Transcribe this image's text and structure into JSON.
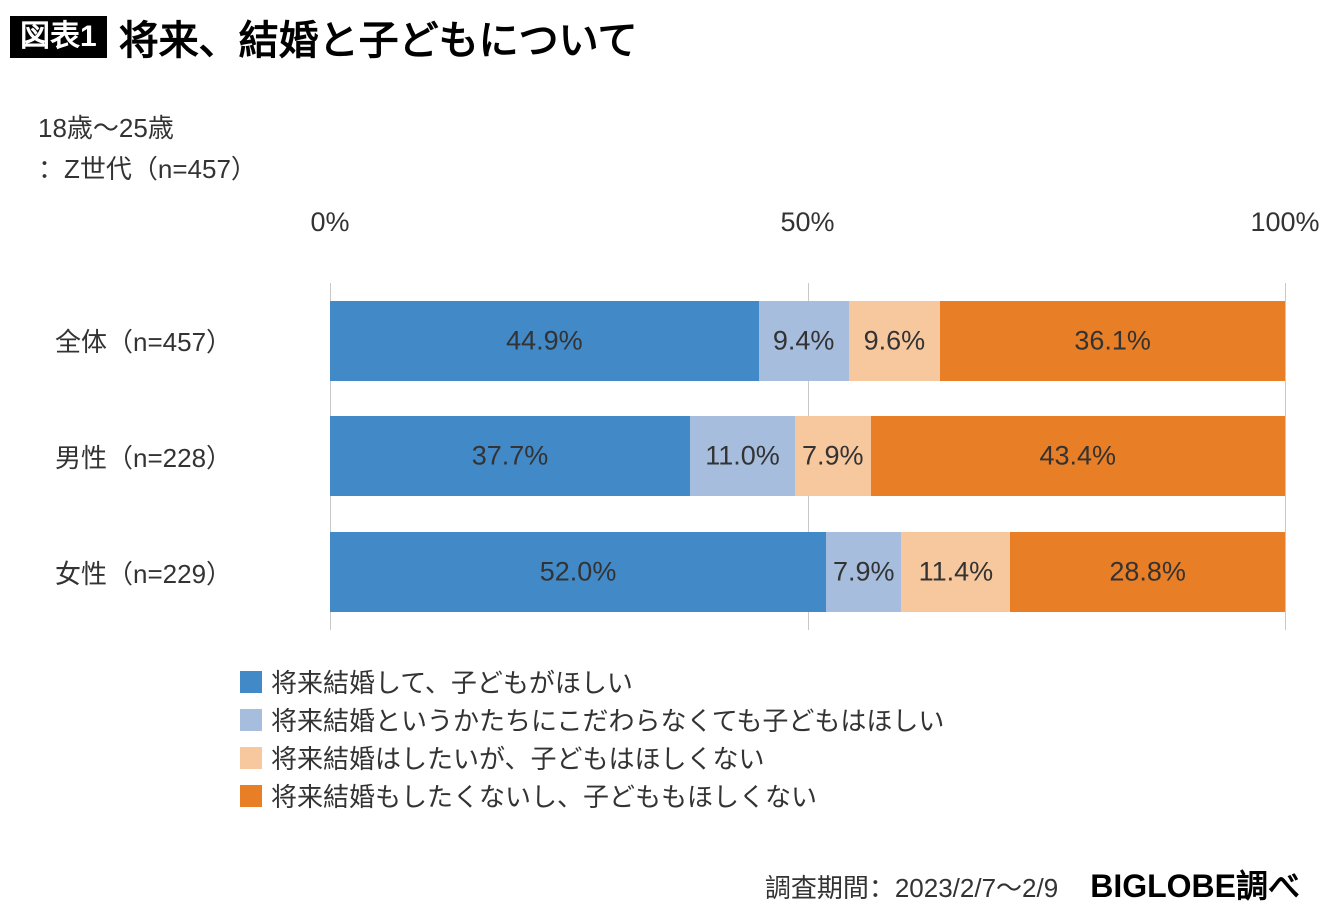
{
  "header": {
    "badge": "図表1",
    "title": "将来、結婚と子どもについて"
  },
  "subtitle": {
    "line1": "18歳〜25歳",
    "line2": "：Z世代（n=457）"
  },
  "chart_data": {
    "type": "bar",
    "orientation": "horizontal",
    "stacked": true,
    "unit": "%",
    "xlim": [
      0,
      100
    ],
    "x_ticks": [
      "0%",
      "50%",
      "100%"
    ],
    "grid": "vertical lines at 0%, 50%, 100%",
    "legend_position": "bottom-left",
    "categories": [
      "全体（n=457）",
      "男性（n=228）",
      "女性（n=229）"
    ],
    "series": [
      {
        "name": "将来結婚して、子どもがほしい",
        "color": "#4289c7",
        "values": [
          44.9,
          37.7,
          52.0
        ],
        "labels": [
          "44.9%",
          "37.7%",
          "52.0%"
        ]
      },
      {
        "name": "将来結婚というかたちにこだわらなくても子どもはほしい",
        "color": "#a6bdde",
        "values": [
          9.4,
          11.0,
          7.9
        ],
        "labels": [
          "9.4%",
          "11.0%",
          "7.9%"
        ]
      },
      {
        "name": "将来結婚はしたいが、子どもはほしくない",
        "color": "#f7c79e",
        "values": [
          9.6,
          7.9,
          11.4
        ],
        "labels": [
          "9.6%",
          "7.9%",
          "11.4%"
        ]
      },
      {
        "name": "将来結婚もしたくないし、子どももほしくない",
        "color": "#e87e25",
        "values": [
          36.1,
          43.4,
          28.8
        ],
        "labels": [
          "36.1%",
          "43.4%",
          "28.8%"
        ]
      }
    ]
  },
  "footer": {
    "survey_period": "調査期間：2023/2/7〜2/9",
    "credit": "BIGLOBE調べ"
  }
}
